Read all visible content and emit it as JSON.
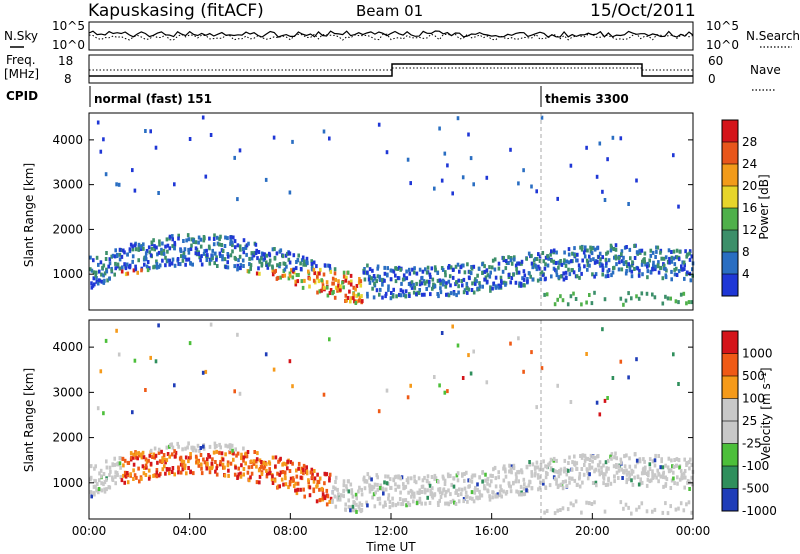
{
  "header": {
    "station": "Kapuskasing (fitACF)",
    "beam": "Beam 01",
    "date": "15/Oct/2011"
  },
  "noise_panel": {
    "left_label": "N.Sky",
    "right_label": "N.Search",
    "ticks": [
      "10^5",
      "10^0"
    ]
  },
  "freq_panel": {
    "left_label_1": "Freq.",
    "left_label_2": "[MHz]",
    "left_ticks": [
      "18",
      "8"
    ],
    "right_label": "Nave",
    "right_ticks": [
      "60",
      "0"
    ]
  },
  "cpid": {
    "label": "CPID",
    "modes": [
      "normal (fast) 151",
      "themis 3300"
    ]
  },
  "colors": {
    "power": [
      "#1f37d6",
      "#2a6ec2",
      "#3c8f6a",
      "#4fb04a",
      "#e7d52a",
      "#f29b1a",
      "#e8561b",
      "#d4141a"
    ],
    "velocity": [
      "#d4141a",
      "#ef5a16",
      "#f59a1a",
      "#c8c8c8",
      "#c8c8c8",
      "#4cbf3a",
      "#2f8f5c",
      "#1f3db8"
    ]
  },
  "chart_data": [
    {
      "type": "heatmap",
      "title": "Power",
      "ylabel": "Slant Range [km]",
      "ylim": [
        200,
        4600
      ],
      "yticks": [
        1000,
        2000,
        3000,
        4000
      ],
      "colorbar": {
        "label": "Power [dB]",
        "ticks": [
          "4",
          "8",
          "12",
          "16",
          "20",
          "24",
          "28"
        ]
      }
    },
    {
      "type": "heatmap",
      "title": "Velocity",
      "ylabel": "Slant Range [km]",
      "ylim": [
        200,
        4600
      ],
      "yticks": [
        1000,
        2000,
        3000,
        4000
      ],
      "xlabel": "Time UT",
      "xticks": [
        "00:00",
        "04:00",
        "08:00",
        "12:00",
        "16:00",
        "20:00",
        "00:00"
      ],
      "colorbar": {
        "label": "Velocity [m s⁻¹]",
        "ticks": [
          "1000",
          "500",
          "100",
          "25",
          "-25",
          "-100",
          "-500",
          "-1000"
        ]
      }
    }
  ]
}
